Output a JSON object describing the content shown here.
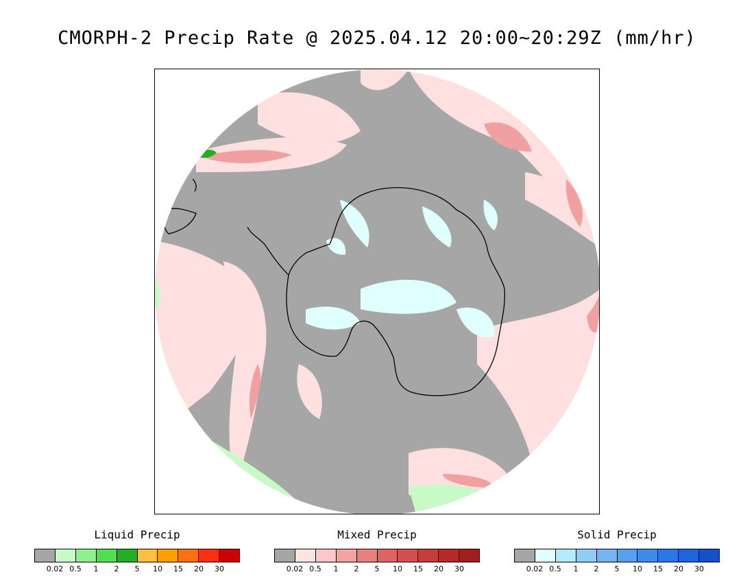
{
  "title": "CMORPH-2 Precip Rate @ 2025.04.12 20:00~20:29Z (mm/hr)",
  "legends": [
    {
      "title": "Liquid Precip",
      "ticks": [
        "0.02",
        "0.5",
        "1",
        "2",
        "5",
        "10",
        "15",
        "20",
        "30"
      ],
      "colors": [
        "#a6a6a6",
        "#c8fac8",
        "#8ef08e",
        "#4ee04e",
        "#22b022",
        "#ffc040",
        "#ffa000",
        "#ff7010",
        "#ff3010",
        "#cc0000"
      ]
    },
    {
      "title": "Mixed Precip",
      "ticks": [
        "0.02",
        "0.5",
        "1",
        "2",
        "5",
        "10",
        "15",
        "20",
        "30"
      ],
      "colors": [
        "#a6a6a6",
        "#ffe4e4",
        "#ffc8c8",
        "#f4a2a2",
        "#e88080",
        "#de6464",
        "#d45050",
        "#c83c3c",
        "#b82828",
        "#a01e1e"
      ]
    },
    {
      "title": "Solid Precip",
      "ticks": [
        "0.02",
        "0.5",
        "1",
        "2",
        "5",
        "10",
        "15",
        "20",
        "30"
      ],
      "colors": [
        "#a6a6a6",
        "#e0ffff",
        "#b0ecfa",
        "#90ccf8",
        "#74b4f4",
        "#56a0f0",
        "#3c8cec",
        "#2878e8",
        "#1e64dc",
        "#1450c8"
      ]
    }
  ],
  "map": {
    "projection": "south polar stereographic",
    "background_color": "#a6a6a6",
    "coastline_color": "#000000"
  }
}
